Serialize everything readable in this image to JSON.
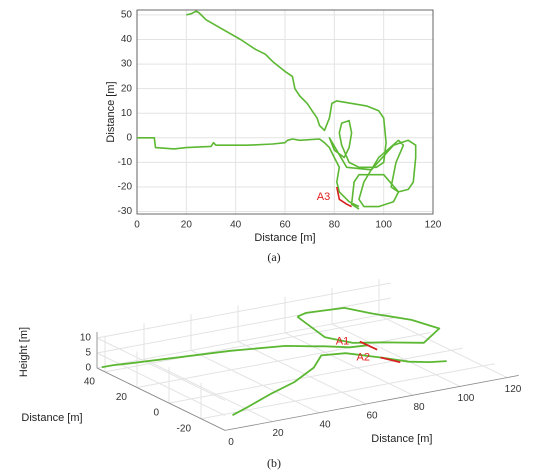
{
  "chart_data": [
    {
      "type": "line",
      "caption": "(a)",
      "xlabel": "Distance [m]",
      "ylabel": "Distance [m]",
      "xlim": [
        0,
        120
      ],
      "ylim": [
        -31,
        52
      ],
      "xticks": [
        0,
        20,
        40,
        60,
        80,
        100,
        120
      ],
      "yticks": [
        -30,
        -20,
        -10,
        0,
        10,
        20,
        30,
        40,
        50
      ],
      "grid": true,
      "series": [
        {
          "color": "#5cb833",
          "x": [
            20,
            22,
            24,
            25,
            28,
            35,
            42,
            48,
            52,
            55,
            60,
            63,
            64,
            66,
            69,
            71,
            73,
            74,
            76,
            78,
            79,
            81,
            93,
            98,
            100,
            101,
            100,
            97,
            90,
            86,
            83,
            82,
            83,
            86,
            87,
            86,
            84,
            80,
            78,
            85,
            95,
            104,
            110,
            113,
            113,
            112,
            110,
            106,
            103,
            105,
            108,
            106,
            98,
            92,
            90,
            92,
            98,
            104,
            106,
            100,
            90,
            88,
            87,
            90,
            null,
            0,
            7,
            7.5,
            15,
            20,
            30,
            31,
            32,
            45,
            55,
            60,
            61,
            63,
            66,
            74,
            76,
            78,
            80,
            82,
            81,
            82,
            86,
            90
          ],
          "y": [
            50,
            50.5,
            51.5,
            51,
            48,
            44,
            40,
            36,
            34,
            31,
            27,
            25,
            20,
            17,
            14,
            11,
            8,
            5,
            3,
            8,
            14,
            15,
            13,
            11,
            8,
            -2,
            -10,
            -12,
            -12,
            -10,
            -3,
            2,
            6,
            7,
            2,
            -4,
            -8,
            -5,
            0,
            -12,
            -13,
            -3,
            -1,
            -3,
            -8,
            -18,
            -21,
            -22,
            -20,
            -10,
            -3,
            -1,
            -8,
            -18,
            -25,
            -28,
            -28,
            -26,
            -22,
            -15,
            -15,
            -18,
            -27,
            -29,
            null,
            0,
            0,
            -4,
            -4.5,
            -4,
            -3.5,
            -2,
            -3,
            -3,
            -2.5,
            -2,
            -1,
            -0.5,
            -1,
            -0.5,
            -2,
            -4,
            -8,
            -12,
            -18,
            -22,
            -26,
            -28
          ]
        },
        {
          "color": "#d92020",
          "label": "A3",
          "x": [
            81,
            82,
            85,
            87
          ],
          "y": [
            -20,
            -25,
            -27,
            -28
          ]
        }
      ]
    },
    {
      "type": "line3d",
      "caption": "(b)",
      "xlabel": "Distance [m]",
      "ylabel": "Distance [m]",
      "zlabel": "Height [m]",
      "xlim": [
        0,
        125
      ],
      "ylim": [
        -35,
        45
      ],
      "zlim": [
        0,
        12
      ],
      "xticks": [
        0,
        20,
        40,
        60,
        80,
        100,
        120
      ],
      "yticks": [
        -20,
        0,
        20,
        40
      ],
      "zticks": [
        0,
        5,
        10
      ],
      "grid": true,
      "series": [
        {
          "color": "#5cb833",
          "x": [
            0,
            5,
            10,
            30,
            50,
            70,
            78,
            80,
            85,
            90,
            null,
            10,
            20,
            35,
            50,
            65,
            75,
            82,
            90,
            98,
            104,
            110,
            null,
            75,
            80,
            95,
            100,
            110,
            115,
            105,
            95,
            85,
            80,
            75
          ],
          "y": [
            42,
            42,
            41,
            38,
            35,
            30,
            25,
            20,
            12,
            8,
            null,
            -25,
            -20,
            -12,
            -5,
            5,
            15,
            10,
            0,
            -6,
            -10,
            -12,
            null,
            30,
            32,
            30,
            20,
            10,
            0,
            -5,
            5,
            10,
            20,
            30
          ],
          "z": [
            1,
            1,
            1,
            1,
            1,
            1,
            1,
            2,
            3,
            4,
            null,
            1,
            1,
            1,
            1,
            1,
            1,
            2,
            2,
            1,
            1,
            1,
            null,
            10,
            10,
            10,
            10,
            9,
            8,
            6,
            5,
            5,
            5,
            10
          ]
        },
        {
          "color": "#d92020",
          "label": "A1",
          "x": [
            88,
            92
          ],
          "y": [
            10,
            5
          ],
          "z": [
            5,
            3
          ]
        },
        {
          "color": "#d92020",
          "label": "A2",
          "x": [
            90,
            95
          ],
          "y": [
            0,
            -5
          ],
          "z": [
            2,
            1
          ]
        }
      ]
    }
  ]
}
